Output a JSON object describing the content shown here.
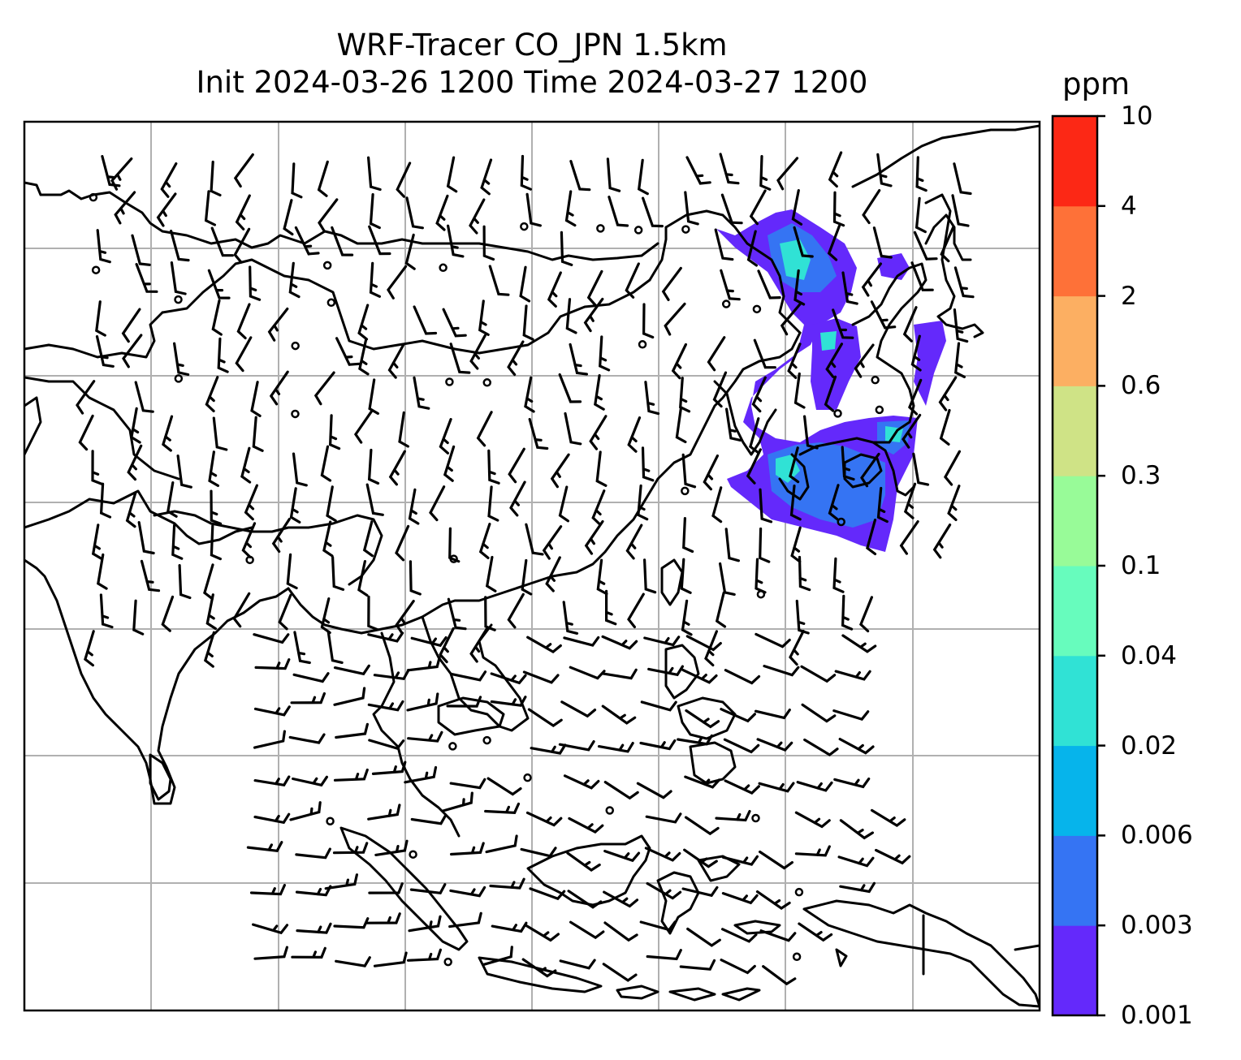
{
  "title": {
    "line1": "WRF-Tracer CO_JPN 1.5km",
    "line2": "Init 2024-03-26 1200 Time 2024-03-27 1200"
  },
  "colorbar": {
    "unit": "ppm",
    "levels": [
      "0.001",
      "0.003",
      "0.006",
      "0.02",
      "0.04",
      "0.1",
      "0.3",
      "0.6",
      "2",
      "4",
      "10"
    ],
    "colors": [
      "#6429fb",
      "#3574f3",
      "#06b4eb",
      "#30e2d5",
      "#67fcbd",
      "#98fb98",
      "#cfe386",
      "#fcaf62",
      "#fe7138",
      "#fc2815"
    ]
  },
  "map": {
    "gridlines": true,
    "gridline_color": "#b0b0b0",
    "coastline_color": "#000000",
    "plume_colors": [
      "#6429fb",
      "#3574f3",
      "#30e2d5"
    ]
  }
}
